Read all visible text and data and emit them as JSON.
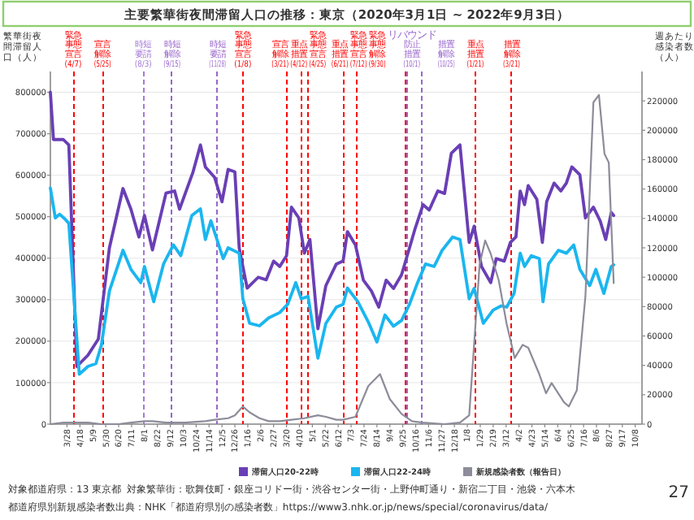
{
  "chart_data": {
    "type": "line",
    "title": "主要繁華街夜間滞留人口の推移：東京（2020年3月1日 ~ 2022年9月3日）",
    "ylabel": "繁華街夜間滞留人口（人）",
    "y2label": "週あたり感染者数（人）",
    "xlim": [
      "2020-03-01",
      "2022-10-19"
    ],
    "xticks": [
      {
        "value": "2020-03-28",
        "label": "3/28"
      },
      {
        "value": "2020-04-18",
        "label": "4/18"
      },
      {
        "value": "2020-05-09",
        "label": "5/9"
      },
      {
        "value": "2020-05-30",
        "label": "5/30"
      },
      {
        "value": "2020-06-20",
        "label": "6/20"
      },
      {
        "value": "2020-07-11",
        "label": "7/11"
      },
      {
        "value": "2020-08-01",
        "label": "8/1"
      },
      {
        "value": "2020-08-22",
        "label": "8/22"
      },
      {
        "value": "2020-09-12",
        "label": "9/12"
      },
      {
        "value": "2020-10-03",
        "label": "10/3"
      },
      {
        "value": "2020-10-24",
        "label": "10/24"
      },
      {
        "value": "2020-11-14",
        "label": "11/14"
      },
      {
        "value": "2020-12-05",
        "label": "12/5"
      },
      {
        "value": "2020-12-26",
        "label": "12/26"
      },
      {
        "value": "2021-01-16",
        "label": "1/16"
      },
      {
        "value": "2021-02-06",
        "label": "2/6"
      },
      {
        "value": "2021-02-27",
        "label": "2/27"
      },
      {
        "value": "2021-03-20",
        "label": "3/20"
      },
      {
        "value": "2021-04-10",
        "label": "4/10"
      },
      {
        "value": "2021-05-01",
        "label": "5/1"
      },
      {
        "value": "2021-05-22",
        "label": "5/22"
      },
      {
        "value": "2021-06-12",
        "label": "6/12"
      },
      {
        "value": "2021-07-03",
        "label": "7/3"
      },
      {
        "value": "2021-07-24",
        "label": "7/24"
      },
      {
        "value": "2021-08-14",
        "label": "8/14"
      },
      {
        "value": "2021-09-04",
        "label": "9/4"
      },
      {
        "value": "2021-09-25",
        "label": "9/25"
      },
      {
        "value": "2021-10-16",
        "label": "10/16"
      },
      {
        "value": "2021-11-06",
        "label": "11/6"
      },
      {
        "value": "2021-11-27",
        "label": "11/27"
      },
      {
        "value": "2021-12-18",
        "label": "12/18"
      },
      {
        "value": "2022-01-08",
        "label": "1/8"
      },
      {
        "value": "2022-01-29",
        "label": "1/29"
      },
      {
        "value": "2022-02-19",
        "label": "2/19"
      },
      {
        "value": "2022-03-12",
        "label": "3/12"
      },
      {
        "value": "2022-04-02",
        "label": "4/2"
      },
      {
        "value": "2022-04-23",
        "label": "4/23"
      },
      {
        "value": "2022-05-14",
        "label": "5/14"
      },
      {
        "value": "2022-06-04",
        "label": "6/4"
      },
      {
        "value": "2022-06-25",
        "label": "6/25"
      },
      {
        "value": "2022-07-16",
        "label": "7/16"
      },
      {
        "value": "2022-08-06",
        "label": "8/6"
      },
      {
        "value": "2022-08-27",
        "label": "8/27"
      },
      {
        "value": "2022-09-17",
        "label": "9/17"
      },
      {
        "value": "2022-10-08",
        "label": "10/8"
      }
    ],
    "ylim": [
      0,
      850000
    ],
    "yticks": [
      0,
      100000,
      200000,
      300000,
      400000,
      500000,
      600000,
      700000,
      800000
    ],
    "y2lim": [
      0,
      240000
    ],
    "y2ticks": [
      0,
      20000,
      40000,
      60000,
      80000,
      100000,
      120000,
      140000,
      160000,
      180000,
      200000,
      220000
    ],
    "grid": "y",
    "legend": "bottom",
    "line_style": "solid",
    "series": [
      {
        "name": "滞留人口20-22時",
        "color": "#6a3fb5",
        "x": [
          "2020-03-01",
          "2020-03-06",
          "2020-03-22",
          "2020-03-31",
          "2020-04-13",
          "2020-05-01",
          "2020-05-18",
          "2020-06-05",
          "2020-06-27",
          "2020-07-10",
          "2020-07-23",
          "2020-08-01",
          "2020-08-14",
          "2020-09-05",
          "2020-09-19",
          "2020-09-27",
          "2020-10-19",
          "2020-10-31",
          "2020-11-08",
          "2020-11-23",
          "2020-12-05",
          "2020-12-15",
          "2020-12-26",
          "2021-01-02",
          "2021-01-15",
          "2021-02-02",
          "2021-02-15",
          "2021-02-27",
          "2021-03-09",
          "2021-03-20",
          "2021-03-28",
          "2021-04-09",
          "2021-04-18",
          "2021-04-27",
          "2021-05-10",
          "2021-05-23",
          "2021-06-09",
          "2021-06-20",
          "2021-06-27",
          "2021-07-10",
          "2021-07-23",
          "2021-08-05",
          "2021-08-17",
          "2021-08-29",
          "2021-09-10",
          "2021-09-23",
          "2021-10-06",
          "2021-10-15",
          "2021-10-28",
          "2021-11-07",
          "2021-11-21",
          "2021-12-02",
          "2021-12-13",
          "2021-12-27",
          "2022-01-11",
          "2022-01-19",
          "2022-01-31",
          "2022-02-15",
          "2022-02-24",
          "2022-03-09",
          "2022-03-19",
          "2022-03-28",
          "2022-04-04",
          "2022-04-11",
          "2022-04-17",
          "2022-05-01",
          "2022-05-10",
          "2022-05-17",
          "2022-05-29",
          "2022-06-09",
          "2022-06-18",
          "2022-06-27",
          "2022-07-10",
          "2022-07-19",
          "2022-08-01",
          "2022-08-12",
          "2022-08-21",
          "2022-08-30",
          "2022-09-03"
        ],
        "values": [
          800000,
          686000,
          686000,
          673000,
          139000,
          166000,
          205000,
          425000,
          568000,
          518000,
          451000,
          503000,
          420000,
          557000,
          562000,
          518000,
          608000,
          673000,
          620000,
          595000,
          536000,
          614000,
          608000,
          425000,
          328000,
          354000,
          348000,
          393000,
          380000,
          406000,
          523000,
          497000,
          412000,
          445000,
          230000,
          334000,
          386000,
          393000,
          464000,
          432000,
          347000,
          321000,
          282000,
          347000,
          327000,
          360000,
          425000,
          471000,
          529000,
          516000,
          562000,
          556000,
          653000,
          673000,
          438000,
          477000,
          380000,
          341000,
          399000,
          393000,
          438000,
          451000,
          562000,
          529000,
          575000,
          542000,
          438000,
          536000,
          581000,
          562000,
          581000,
          620000,
          601000,
          497000,
          523000,
          490000,
          445000,
          510000,
          503000
        ]
      },
      {
        "name": "滞留人口22-24時",
        "color": "#1ab6ef",
        "x": [
          "2020-03-01",
          "2020-03-09",
          "2020-03-16",
          "2020-03-25",
          "2020-03-31",
          "2020-04-17",
          "2020-05-01",
          "2020-05-14",
          "2020-05-23",
          "2020-06-05",
          "2020-06-27",
          "2020-07-10",
          "2020-07-26",
          "2020-08-01",
          "2020-08-16",
          "2020-09-01",
          "2020-09-17",
          "2020-09-29",
          "2020-10-17",
          "2020-10-31",
          "2020-11-08",
          "2020-11-17",
          "2020-12-07",
          "2020-12-15",
          "2021-01-02",
          "2021-01-08",
          "2021-01-19",
          "2021-02-04",
          "2021-02-19",
          "2021-03-09",
          "2021-03-22",
          "2021-04-04",
          "2021-04-13",
          "2021-04-24",
          "2021-05-10",
          "2021-05-23",
          "2021-06-09",
          "2021-06-20",
          "2021-06-27",
          "2021-07-14",
          "2021-08-01",
          "2021-08-14",
          "2021-08-27",
          "2021-09-10",
          "2021-09-23",
          "2021-10-06",
          "2021-10-19",
          "2021-11-01",
          "2021-11-15",
          "2021-11-28",
          "2021-12-15",
          "2021-12-27",
          "2022-01-11",
          "2022-01-19",
          "2022-02-03",
          "2022-02-19",
          "2022-03-04",
          "2022-03-13",
          "2022-03-25",
          "2022-04-04",
          "2022-04-11",
          "2022-04-22",
          "2022-05-05",
          "2022-05-11",
          "2022-05-20",
          "2022-06-05",
          "2022-06-18",
          "2022-06-30",
          "2022-07-10",
          "2022-07-26",
          "2022-08-05",
          "2022-08-18",
          "2022-08-30",
          "2022-09-03"
        ],
        "values": [
          569000,
          497000,
          506000,
          494000,
          484000,
          120000,
          139000,
          146000,
          191000,
          321000,
          419000,
          373000,
          341000,
          380000,
          295000,
          386000,
          432000,
          406000,
          503000,
          519000,
          445000,
          490000,
          399000,
          425000,
          412000,
          302000,
          243000,
          237000,
          256000,
          269000,
          289000,
          341000,
          302000,
          308000,
          159000,
          243000,
          282000,
          289000,
          328000,
          295000,
          243000,
          198000,
          263000,
          236000,
          250000,
          289000,
          341000,
          386000,
          380000,
          419000,
          451000,
          445000,
          302000,
          327000,
          243000,
          275000,
          285000,
          282000,
          315000,
          412000,
          380000,
          406000,
          399000,
          295000,
          386000,
          419000,
          412000,
          432000,
          373000,
          334000,
          373000,
          315000,
          380000,
          384000
        ]
      },
      {
        "name": "新規感染者数（報告日）",
        "color": "#8c8c9a",
        "axis": "y2",
        "x": [
          "2020-03-01",
          "2020-03-22",
          "2020-04-13",
          "2020-05-01",
          "2020-05-23",
          "2020-06-20",
          "2020-07-10",
          "2020-08-01",
          "2020-08-14",
          "2020-09-05",
          "2020-10-06",
          "2020-11-08",
          "2020-11-23",
          "2020-12-15",
          "2020-12-26",
          "2021-01-08",
          "2021-01-19",
          "2021-02-04",
          "2021-02-19",
          "2021-03-09",
          "2021-03-28",
          "2021-04-18",
          "2021-05-10",
          "2021-05-23",
          "2021-06-09",
          "2021-06-20",
          "2021-07-10",
          "2021-07-31",
          "2021-08-19",
          "2021-09-04",
          "2021-09-23",
          "2021-10-10",
          "2021-10-28",
          "2021-12-02",
          "2021-12-27",
          "2022-01-11",
          "2022-01-19",
          "2022-01-28",
          "2022-02-06",
          "2022-02-15",
          "2022-02-28",
          "2022-03-13",
          "2022-03-26",
          "2022-04-08",
          "2022-04-17",
          "2022-05-05",
          "2022-05-16",
          "2022-05-25",
          "2022-06-14",
          "2022-06-22",
          "2022-07-05",
          "2022-07-19",
          "2022-08-01",
          "2022-08-10",
          "2022-08-19",
          "2022-08-26",
          "2022-09-03"
        ],
        "values": [
          0,
          1000,
          1000,
          1000,
          0,
          0,
          1000,
          2000,
          2000,
          1000,
          1000,
          2000,
          3000,
          4000,
          6000,
          12000,
          8000,
          4000,
          2000,
          2000,
          3000,
          4000,
          6000,
          5000,
          3000,
          3000,
          5000,
          26000,
          34000,
          17000,
          7000,
          2000,
          1000,
          0,
          1000,
          6000,
          54000,
          109000,
          125000,
          116000,
          98000,
          68000,
          45000,
          54000,
          52000,
          34000,
          21000,
          28000,
          15000,
          12000,
          23000,
          87000,
          219000,
          224000,
          184000,
          178000,
          96000
        ]
      }
    ],
    "ref_lines": [
      {
        "axis": "x",
        "value": "2020-04-07",
        "label": "緊急事態宣言(4/7)",
        "color": "#ff0000",
        "line_style": "dashed"
      },
      {
        "axis": "x",
        "value": "2020-05-25",
        "label": "宣言解除(5/25)",
        "color": "#ff0000",
        "line_style": "dashed"
      },
      {
        "axis": "x",
        "value": "2020-07-30",
        "label": "時短要請(8/3)",
        "color": "#a57ad6",
        "line_style": "dashed"
      },
      {
        "axis": "x",
        "value": "2020-09-15",
        "label": "時短解除(9/15)",
        "color": "#9966cc",
        "line_style": "dashed"
      },
      {
        "axis": "x",
        "value": "2020-11-28",
        "label": "時短要請(11/28)",
        "color": "#9966cc",
        "line_style": "dashed"
      },
      {
        "axis": "x",
        "value": "2021-01-08",
        "label": "緊急事態宣言(1/8)",
        "color": "#ff0000",
        "line_style": "dashed"
      },
      {
        "axis": "x",
        "value": "2021-03-21",
        "label": "宣言解除(3/21)",
        "color": "#ff0000",
        "line_style": "dashed"
      },
      {
        "axis": "x",
        "value": "2021-04-12",
        "label": "重点措置(4/12)",
        "color": "#ff0000",
        "line_style": "dashed"
      },
      {
        "axis": "x",
        "value": "2021-04-25",
        "label": "緊急事態宣言(4/25)",
        "color": "#ff0000",
        "line_style": "dashed"
      },
      {
        "axis": "x",
        "value": "2021-06-21",
        "label": "重点措置(6/21)",
        "color": "#ff0000",
        "line_style": "dashed"
      },
      {
        "axis": "x",
        "value": "2021-07-12",
        "label": "緊急事態宣言(7/12)",
        "color": "#ff0000",
        "line_style": "dashed"
      },
      {
        "axis": "x",
        "value": "2021-09-30",
        "label": "緊急事態解除(9/30)",
        "color": "#ff0000",
        "line_style": "dashed"
      },
      {
        "axis": "x",
        "value": "2021-10-01",
        "label": "リバウンド防止措置(10/1)",
        "color": "#9966cc",
        "line_style": "dashed"
      },
      {
        "axis": "x",
        "value": "2021-10-25",
        "label": "措置解除(10/25)",
        "color": "#9966cc",
        "line_style": "dashed"
      },
      {
        "axis": "x",
        "value": "2022-01-21",
        "label": "重点措置(1/21)",
        "color": "#ff0000",
        "line_style": "dashed"
      },
      {
        "axis": "x",
        "value": "2022-03-21",
        "label": "措置解除(3/21)",
        "color": "#ff0000",
        "line_style": "dashed"
      }
    ],
    "annotations": [
      "対象都道府県：13 東京都",
      "対象繁華街：歌舞伎町・銀座コリドー街・渋谷センター街・上野仲町通り・新宿二丁目・池袋・六本木",
      "都道府県別新規感染者数出典：NHK「都道府県別の感染者数」https://www3.nhk.or.jp/news/special/coronavirus/data/",
      "27"
    ]
  }
}
